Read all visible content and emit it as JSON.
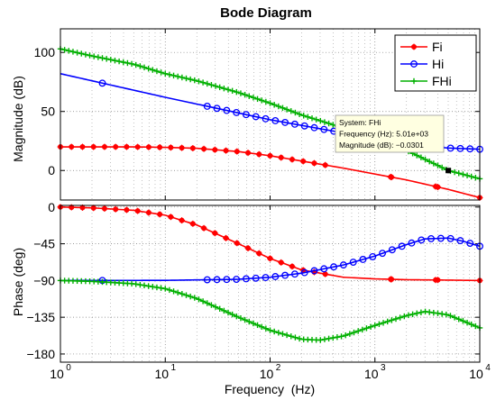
{
  "chart_data": {
    "type": "line",
    "title": "Bode Diagram",
    "xlabel": "Frequency  (Hz)",
    "x_scale": "log",
    "xlim": [
      1,
      10000
    ],
    "x_ticks": [
      1,
      10,
      100,
      1000,
      10000
    ],
    "x_tick_labels": [
      {
        "base": "10",
        "exp": "0"
      },
      {
        "base": "10",
        "exp": "1"
      },
      {
        "base": "10",
        "exp": "2"
      },
      {
        "base": "10",
        "exp": "3"
      },
      {
        "base": "10",
        "exp": "4"
      }
    ],
    "grid": true,
    "grid_style": "dotted",
    "legend": {
      "placement": "top-right",
      "entries": [
        "Fi",
        "Hi",
        "FHi"
      ]
    },
    "colors": {
      "Fi": "#ff0000",
      "Hi": "#0000ff",
      "FHi": "#00b000"
    },
    "markers": {
      "Fi": "asterisk",
      "Hi": "circle",
      "FHi": "plus"
    },
    "panels": [
      {
        "id": "magnitude",
        "ylabel": "Magnitude (dB)",
        "ylim": [
          -25,
          120
        ],
        "y_ticks": [
          0,
          50,
          100
        ],
        "y_tick_labels": [
          "0",
          "50",
          "100"
        ],
        "series": [
          {
            "name": "Fi",
            "x": [
              1,
              2,
              5,
              10,
              20,
              50,
              100,
              200,
              500,
              1000,
              2000,
              5000,
              10000
            ],
            "y": [
              20,
              20,
              20,
              19.6,
              18.8,
              16,
              12.5,
              8,
              2,
              -3,
              -8,
              -16,
              -23
            ]
          },
          {
            "name": "Hi",
            "x": [
              1,
              10,
              100,
              1000,
              2000,
              5000,
              10000
            ],
            "y": [
              82,
              62,
              43,
              27,
              22.5,
              19,
              18
            ]
          },
          {
            "name": "FHi",
            "x": [
              1,
              2,
              5,
              10,
              20,
              50,
              100,
              200,
              500,
              1000,
              2000,
              5000,
              10000
            ],
            "y": [
              103,
              97,
              90,
              82,
              76,
              66,
              57,
              47,
              36,
              28,
              17,
              0,
              -7
            ]
          }
        ]
      },
      {
        "id": "phase",
        "ylabel": "Phase (deg)",
        "ylim": [
          -190,
          2
        ],
        "y_ticks": [
          0,
          -45,
          -90,
          -135,
          -180
        ],
        "y_tick_labels": [
          "0",
          "−45",
          "−90",
          "−135",
          "−180"
        ],
        "series": [
          {
            "name": "Fi",
            "x": [
              1,
              2,
              5,
              10,
              20,
              50,
              100,
              200,
              500,
              1000,
              2000,
              5000,
              10000
            ],
            "y": [
              0,
              -1,
              -4,
              -10,
              -22,
              -45,
              -63,
              -77,
              -86,
              -88,
              -89,
              -89.5,
              -90
            ]
          },
          {
            "name": "Hi",
            "x": [
              1,
              10,
              50,
              100,
              200,
              500,
              1000,
              2000,
              3000,
              5000,
              7000,
              10000
            ],
            "y": [
              -90,
              -89.8,
              -88.5,
              -86,
              -81,
              -71,
              -60,
              -46,
              -39,
              -38,
              -42,
              -48
            ]
          },
          {
            "name": "FHi",
            "x": [
              1,
              2,
              5,
              10,
              20,
              50,
              100,
              200,
              300,
              500,
              1000,
              2000,
              3000,
              5000,
              10000
            ],
            "y": [
              -90,
              -91,
              -94,
              -100,
              -112,
              -135,
              -151,
              -162,
              -163,
              -158,
              -145,
              -133,
              -128,
              -132,
              -148
            ]
          }
        ]
      }
    ],
    "datatip": {
      "system_line": "System: FHi",
      "frequency_line": "Frequency (Hz): 5.01e+03",
      "magnitude_line": "Magnitude (dB): −0.0301",
      "x": 5010,
      "y": -0.0301
    }
  }
}
